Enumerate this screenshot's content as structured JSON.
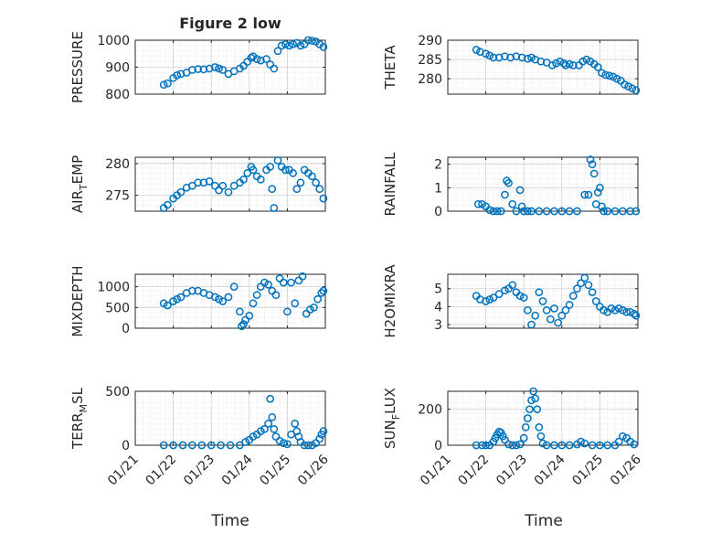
{
  "figure": {
    "title": "Figure 2 low",
    "xlabel_left": "Time",
    "xlabel_right": "Time",
    "x_tick_labels": [
      "01/21",
      "01/22",
      "01/23",
      "01/24",
      "01/25",
      "01/26"
    ],
    "marker_color": "#0072BD"
  },
  "chart_data": [
    {
      "type": "scatter",
      "title": "Figure 2 low",
      "ylabel_parts": [
        {
          "t": "PRESSURE",
          "sub": false
        }
      ],
      "xlim": [
        0,
        5
      ],
      "ylim": [
        800,
        1000
      ],
      "yticks": [
        800,
        900,
        1000
      ],
      "ytick_labels": [
        "800",
        "900",
        "1000"
      ],
      "grid": "major+minor",
      "x": [
        0.75,
        0.85,
        1.0,
        1.1,
        1.2,
        1.35,
        1.5,
        1.65,
        1.8,
        1.95,
        2.1,
        2.2,
        2.3,
        2.45,
        2.6,
        2.75,
        2.85,
        2.95,
        3.05,
        3.1,
        3.2,
        3.3,
        3.45,
        3.55,
        3.65,
        3.75,
        3.85,
        3.95,
        4.05,
        4.15,
        4.25,
        4.35,
        4.45,
        4.55,
        4.65,
        4.75,
        4.85,
        4.95
      ],
      "y": [
        835,
        840,
        860,
        870,
        875,
        880,
        890,
        893,
        892,
        895,
        900,
        895,
        890,
        875,
        885,
        895,
        905,
        920,
        935,
        940,
        930,
        925,
        930,
        910,
        895,
        960,
        980,
        985,
        980,
        985,
        990,
        980,
        985,
        1000,
        998,
        995,
        985,
        975
      ]
    },
    {
      "type": "scatter",
      "ylabel_parts": [
        {
          "t": "THETA",
          "sub": false
        }
      ],
      "xlim": [
        0,
        5
      ],
      "ylim": [
        276,
        290
      ],
      "yticks": [
        280,
        285,
        290
      ],
      "ytick_labels": [
        "280",
        "285",
        "290"
      ],
      "grid": "major+minor",
      "x": [
        0.75,
        0.85,
        1.0,
        1.1,
        1.2,
        1.35,
        1.5,
        1.65,
        1.8,
        1.95,
        2.1,
        2.2,
        2.3,
        2.45,
        2.6,
        2.75,
        2.85,
        2.95,
        3.05,
        3.1,
        3.2,
        3.3,
        3.45,
        3.55,
        3.65,
        3.75,
        3.85,
        3.95,
        4.05,
        4.15,
        4.25,
        4.35,
        4.45,
        4.55,
        4.65,
        4.75,
        4.85,
        4.95
      ],
      "y": [
        287.5,
        287,
        286.5,
        286,
        285.5,
        285.5,
        285.8,
        285.5,
        285.8,
        285.5,
        285.2,
        285.5,
        285,
        284.5,
        284.2,
        283.5,
        284,
        284.5,
        284,
        283.5,
        283.8,
        283.5,
        283.5,
        284.5,
        285,
        284.5,
        283.8,
        283,
        281.5,
        281,
        280.8,
        280.5,
        280,
        279.5,
        278.5,
        278,
        277.5,
        277
      ]
    },
    {
      "type": "scatter",
      "ylabel_parts": [
        {
          "t": "AIR",
          "sub": false
        },
        {
          "t": "T",
          "sub": true
        },
        {
          "t": "EMP",
          "sub": false
        }
      ],
      "xlim": [
        0,
        5
      ],
      "ylim": [
        272.5,
        281
      ],
      "yticks": [
        275,
        280
      ],
      "ytick_labels": [
        "275",
        "280"
      ],
      "grid": "major+minor",
      "x": [
        0.75,
        0.85,
        1.0,
        1.1,
        1.2,
        1.35,
        1.5,
        1.65,
        1.8,
        1.95,
        2.1,
        2.2,
        2.3,
        2.45,
        2.6,
        2.75,
        2.85,
        2.95,
        3.05,
        3.1,
        3.2,
        3.3,
        3.45,
        3.55,
        3.6,
        3.65,
        3.75,
        3.85,
        3.95,
        4.05,
        4.15,
        4.25,
        4.35,
        4.45,
        4.55,
        4.65,
        4.75,
        4.85,
        4.95
      ],
      "y": [
        273,
        273.5,
        274.5,
        275,
        275.5,
        276.2,
        276.5,
        277,
        277,
        277.2,
        276.5,
        275.8,
        276.5,
        275.5,
        276.5,
        277,
        277.5,
        278.5,
        279.5,
        279,
        278,
        277.5,
        279,
        279.5,
        276,
        273,
        280.5,
        279.5,
        279,
        279,
        278.5,
        276,
        277,
        279,
        278.5,
        278,
        277,
        276,
        274.5
      ]
    },
    {
      "type": "scatter",
      "ylabel_parts": [
        {
          "t": "RAINFALL",
          "sub": false
        }
      ],
      "xlim": [
        0,
        5
      ],
      "ylim": [
        0,
        2.3
      ],
      "yticks": [
        0,
        1,
        2
      ],
      "ytick_labels": [
        "0",
        "1",
        "2"
      ],
      "grid": "major+minor",
      "x": [
        0.8,
        0.9,
        1.0,
        1.1,
        1.2,
        1.3,
        1.4,
        1.5,
        1.55,
        1.6,
        1.7,
        1.8,
        1.9,
        1.95,
        2.0,
        2.1,
        2.2,
        2.4,
        2.6,
        2.8,
        3.0,
        3.2,
        3.4,
        3.6,
        3.7,
        3.75,
        3.8,
        3.85,
        3.9,
        3.95,
        4.0,
        4.05,
        4.1,
        4.2,
        4.4,
        4.6,
        4.8,
        4.95
      ],
      "y": [
        0.3,
        0.3,
        0.2,
        0.05,
        0,
        0,
        0,
        0.7,
        1.3,
        1.2,
        0.3,
        0,
        0.9,
        0.2,
        0,
        0,
        0,
        0,
        0,
        0,
        0,
        0,
        0,
        0.7,
        0.7,
        2.2,
        2.0,
        1.6,
        0.3,
        0.8,
        1.0,
        0.2,
        0,
        0,
        0,
        0,
        0,
        0
      ]
    },
    {
      "type": "scatter",
      "ylabel_parts": [
        {
          "t": "MIXDEPTH",
          "sub": false
        }
      ],
      "xlim": [
        0,
        5
      ],
      "ylim": [
        0,
        1300
      ],
      "yticks": [
        0,
        500,
        1000
      ],
      "ytick_labels": [
        "0",
        "500",
        "1000"
      ],
      "grid": "major+minor",
      "x": [
        0.75,
        0.85,
        1.0,
        1.1,
        1.2,
        1.35,
        1.5,
        1.65,
        1.8,
        1.95,
        2.1,
        2.2,
        2.3,
        2.45,
        2.6,
        2.75,
        2.8,
        2.85,
        2.9,
        3.0,
        3.1,
        3.2,
        3.3,
        3.4,
        3.5,
        3.6,
        3.7,
        3.8,
        3.9,
        4.0,
        4.1,
        4.2,
        4.3,
        4.4,
        4.5,
        4.6,
        4.7,
        4.8,
        4.9,
        4.95
      ],
      "y": [
        600,
        550,
        650,
        700,
        750,
        850,
        900,
        900,
        850,
        800,
        750,
        700,
        650,
        750,
        1000,
        400,
        50,
        100,
        200,
        300,
        600,
        800,
        1000,
        1100,
        1050,
        900,
        800,
        1200,
        1100,
        400,
        1100,
        600,
        1150,
        1250,
        350,
        450,
        500,
        700,
        850,
        900
      ]
    },
    {
      "type": "scatter",
      "ylabel_parts": [
        {
          "t": "H2OMIXRA",
          "sub": false
        }
      ],
      "xlim": [
        0,
        5
      ],
      "ylim": [
        2.8,
        5.8
      ],
      "yticks": [
        3,
        4,
        5
      ],
      "ytick_labels": [
        "3",
        "4",
        "5"
      ],
      "grid": "major+minor",
      "x": [
        0.75,
        0.85,
        1.0,
        1.1,
        1.2,
        1.35,
        1.5,
        1.6,
        1.7,
        1.8,
        1.9,
        2.0,
        2.1,
        2.2,
        2.3,
        2.4,
        2.5,
        2.6,
        2.7,
        2.8,
        2.9,
        3.0,
        3.1,
        3.2,
        3.3,
        3.4,
        3.5,
        3.6,
        3.7,
        3.8,
        3.9,
        4.0,
        4.1,
        4.2,
        4.3,
        4.4,
        4.5,
        4.6,
        4.7,
        4.8,
        4.9,
        4.95
      ],
      "y": [
        4.6,
        4.4,
        4.3,
        4.4,
        4.5,
        4.7,
        4.9,
        5.0,
        5.2,
        4.8,
        4.6,
        4.5,
        3.8,
        3.0,
        3.5,
        4.8,
        4.3,
        3.8,
        3.3,
        3.9,
        3.1,
        3.5,
        3.8,
        4.1,
        4.6,
        5.0,
        5.3,
        5.6,
        5.2,
        4.8,
        4.3,
        4.0,
        3.8,
        3.7,
        3.9,
        3.8,
        3.9,
        3.8,
        3.7,
        3.7,
        3.6,
        3.5
      ]
    },
    {
      "type": "scatter",
      "ylabel_parts": [
        {
          "t": "TERR",
          "sub": false
        },
        {
          "t": "M",
          "sub": true
        },
        {
          "t": "SL",
          "sub": false
        }
      ],
      "xlim": [
        0,
        5
      ],
      "ylim": [
        0,
        500
      ],
      "yticks": [
        0,
        500
      ],
      "ytick_labels": [
        "0",
        "500"
      ],
      "grid": "major+minor",
      "x": [
        0.75,
        1.0,
        1.25,
        1.5,
        1.75,
        2.0,
        2.25,
        2.5,
        2.75,
        2.9,
        3.0,
        3.1,
        3.2,
        3.3,
        3.4,
        3.5,
        3.55,
        3.6,
        3.65,
        3.7,
        3.8,
        3.9,
        4.0,
        4.1,
        4.2,
        4.25,
        4.3,
        4.35,
        4.45,
        4.55,
        4.65,
        4.75,
        4.85,
        4.9,
        4.95
      ],
      "y": [
        0,
        0,
        0,
        0,
        0,
        0,
        0,
        0,
        0,
        30,
        50,
        80,
        100,
        130,
        150,
        200,
        430,
        260,
        150,
        80,
        40,
        20,
        10,
        100,
        200,
        130,
        80,
        30,
        0,
        0,
        0,
        20,
        60,
        100,
        130
      ]
    },
    {
      "type": "scatter",
      "ylabel_parts": [
        {
          "t": "SUN",
          "sub": false
        },
        {
          "t": "F",
          "sub": true
        },
        {
          "t": "LUX",
          "sub": false
        }
      ],
      "xlim": [
        0,
        5
      ],
      "ylim": [
        0,
        300
      ],
      "yticks": [
        0,
        200
      ],
      "ytick_labels": [
        "0",
        "200"
      ],
      "grid": "major+minor",
      "x": [
        0.75,
        0.9,
        1.0,
        1.1,
        1.2,
        1.25,
        1.3,
        1.35,
        1.4,
        1.45,
        1.5,
        1.6,
        1.7,
        1.8,
        1.9,
        2.0,
        2.05,
        2.1,
        2.15,
        2.2,
        2.25,
        2.3,
        2.35,
        2.4,
        2.45,
        2.5,
        2.6,
        2.8,
        3.0,
        3.2,
        3.4,
        3.5,
        3.6,
        3.8,
        4.0,
        4.2,
        4.4,
        4.5,
        4.6,
        4.7,
        4.8,
        4.9
      ],
      "y": [
        0,
        0,
        0,
        0,
        20,
        40,
        60,
        75,
        70,
        50,
        30,
        5,
        0,
        0,
        5,
        40,
        100,
        150,
        200,
        250,
        300,
        260,
        200,
        100,
        50,
        10,
        0,
        0,
        0,
        0,
        5,
        20,
        10,
        0,
        0,
        0,
        0,
        20,
        50,
        40,
        20,
        5
      ]
    }
  ]
}
